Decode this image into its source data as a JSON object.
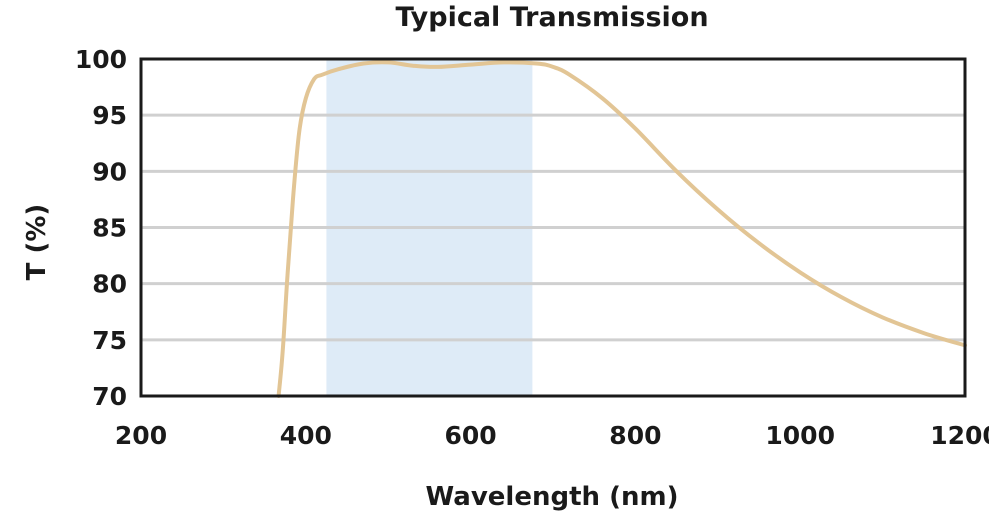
{
  "chart_data": {
    "type": "line",
    "title": "Typical Transmission",
    "xlabel": "Wavelength (nm)",
    "ylabel": "T (%)",
    "xlim": [
      200,
      1200
    ],
    "ylim": [
      70,
      100
    ],
    "x_ticks": [
      "200",
      "400",
      "600",
      "800",
      "1000",
      "1200"
    ],
    "y_ticks": [
      "70",
      "75",
      "80",
      "85",
      "90",
      "95",
      "100"
    ],
    "grid": "horizontal",
    "highlight_band": {
      "x_start": 425,
      "x_end": 675,
      "color": "#deebf7"
    },
    "series": [
      {
        "color": "#e2c595",
        "x": [
          367,
          372,
          378,
          385,
          392,
          400,
          410,
          420,
          440,
          470,
          500,
          530,
          560,
          600,
          640,
          680,
          700,
          720,
          760,
          800,
          850,
          900,
          950,
          1000,
          1050,
          1100,
          1150,
          1200
        ],
        "y": [
          70,
          74,
          81,
          88,
          93.5,
          96.5,
          98.2,
          98.6,
          99.1,
          99.6,
          99.7,
          99.4,
          99.3,
          99.5,
          99.7,
          99.6,
          99.3,
          98.6,
          96.5,
          93.8,
          90.0,
          86.6,
          83.6,
          81.0,
          78.8,
          77.0,
          75.6,
          74.5
        ]
      }
    ]
  }
}
